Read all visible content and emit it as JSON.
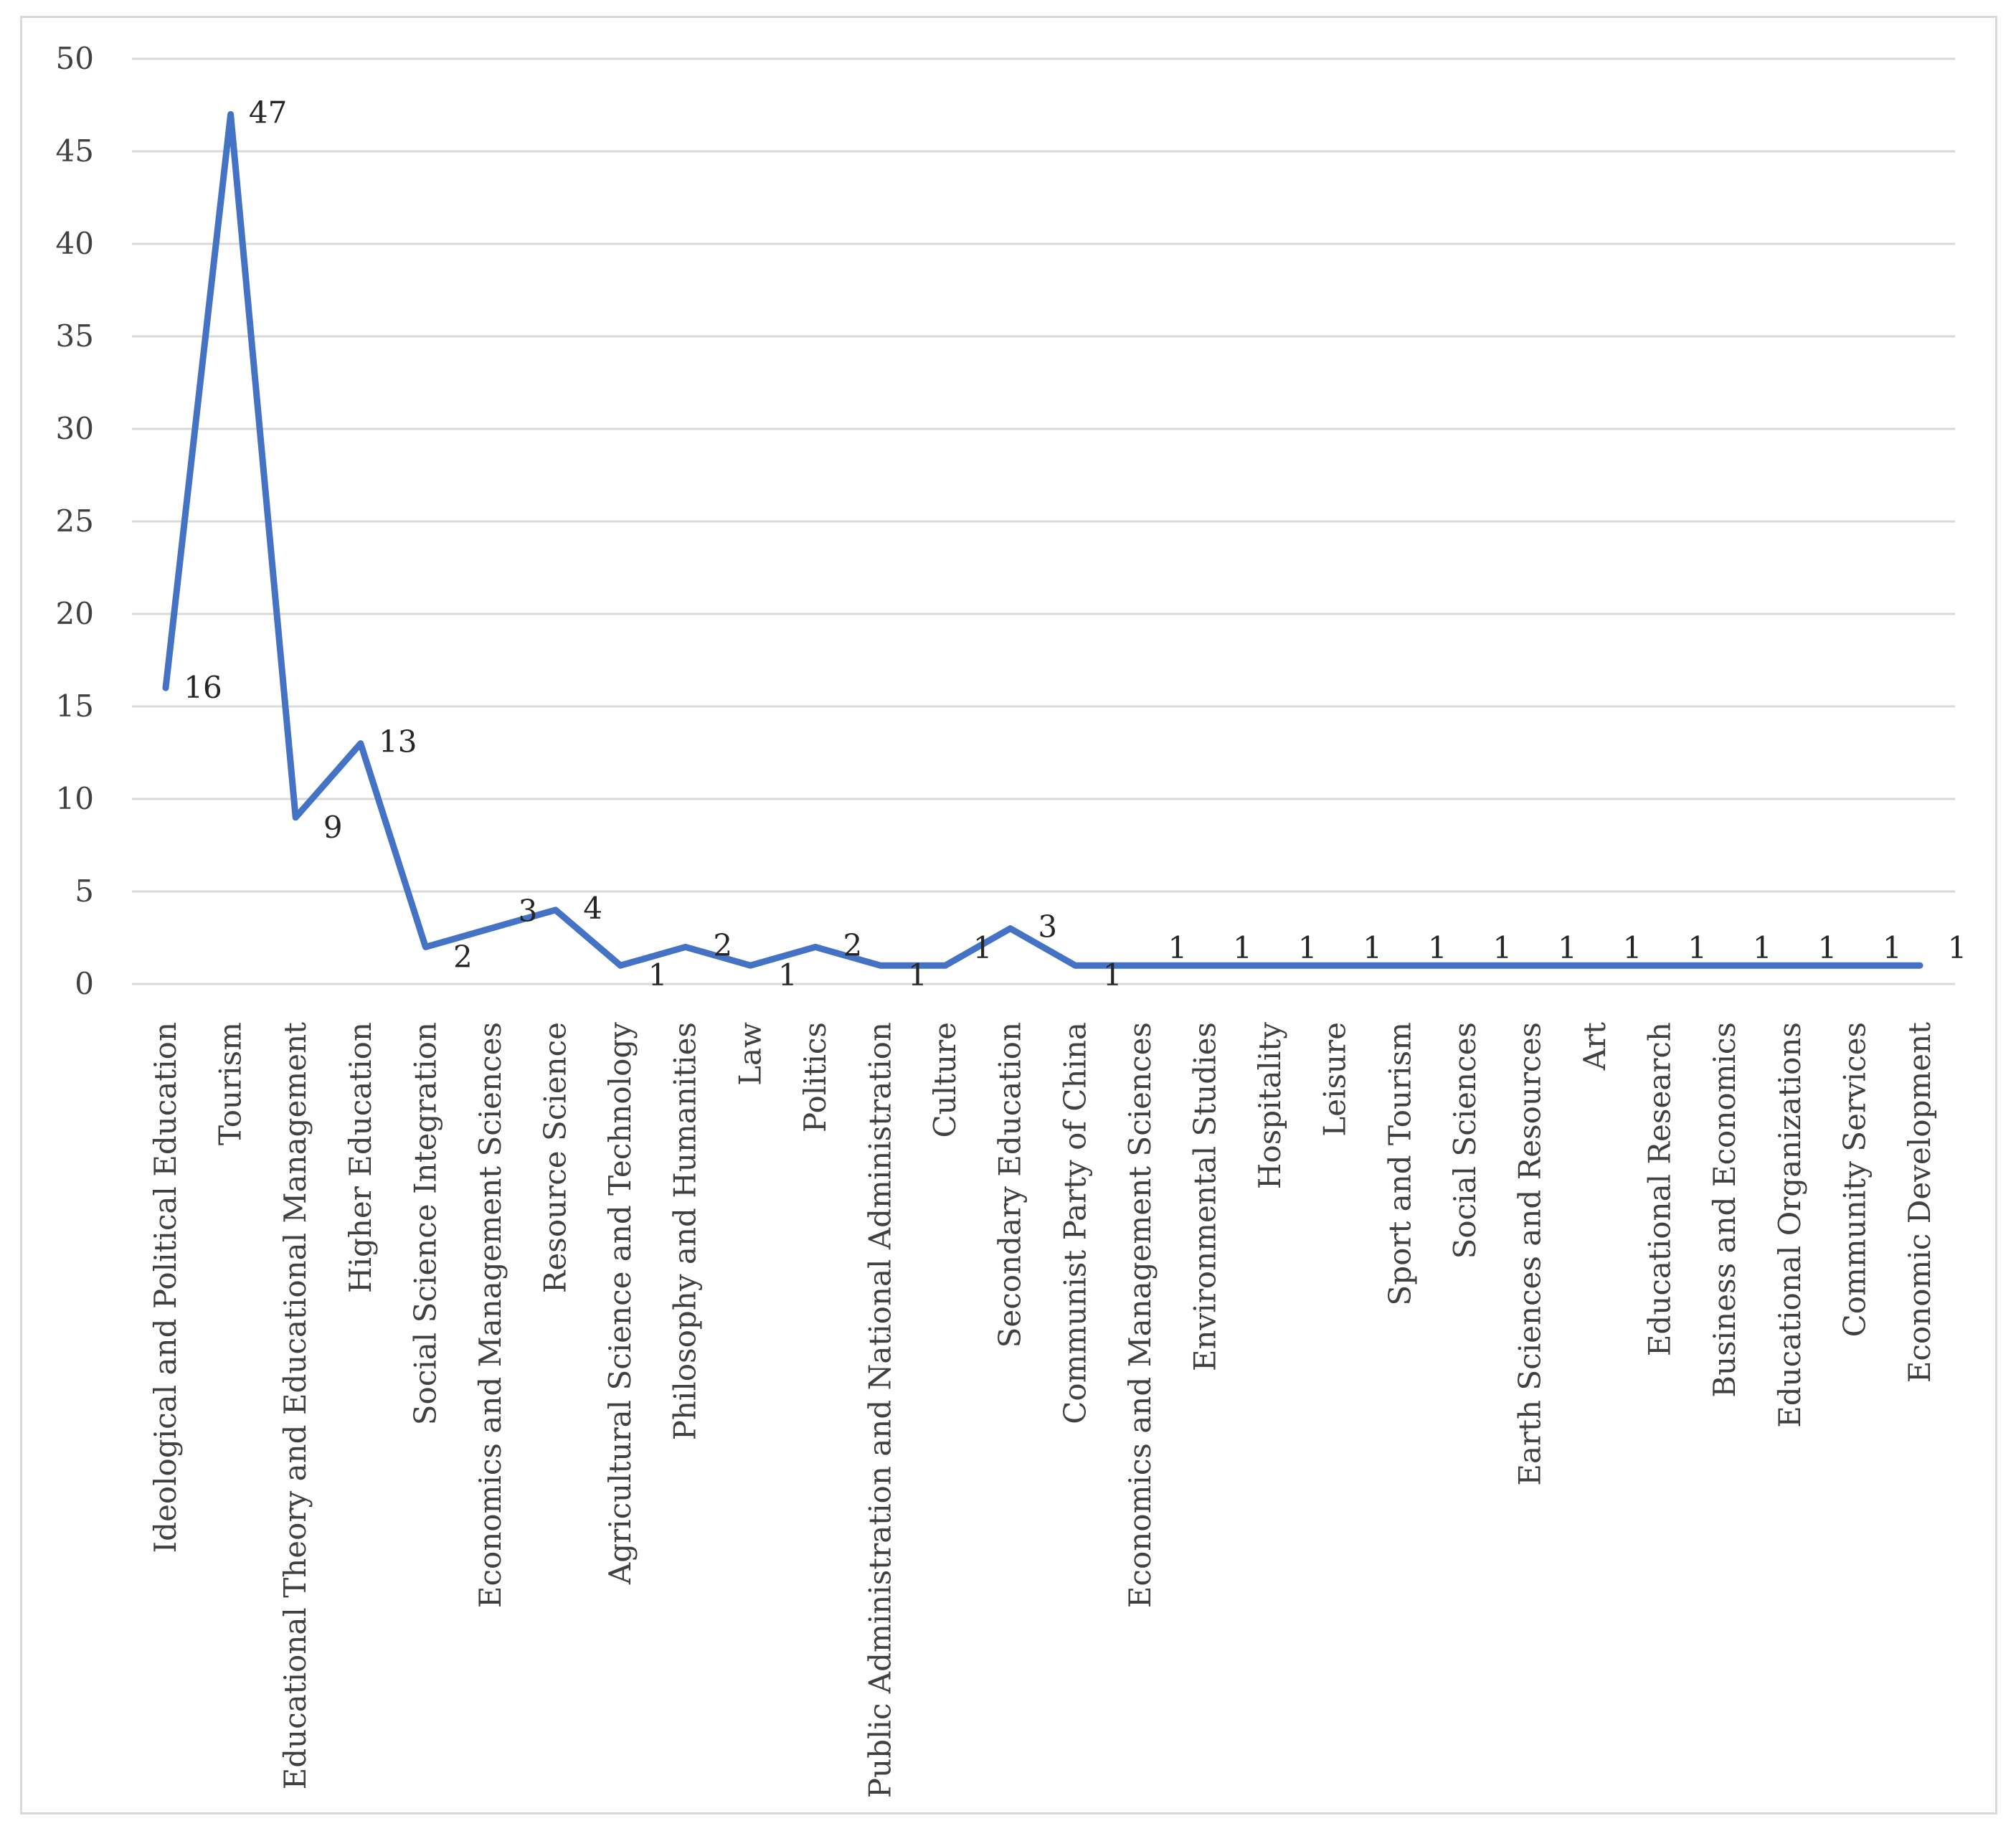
{
  "chart_data": {
    "type": "line",
    "title": "",
    "xlabel": "",
    "ylabel": "",
    "ylim": [
      0,
      50
    ],
    "yticks": [
      0,
      5,
      10,
      15,
      20,
      25,
      30,
      35,
      40,
      45,
      50
    ],
    "grid": true,
    "legend": "none",
    "series_color": "#4472c4",
    "categories": [
      "Ideological and Political Education",
      "Tourism",
      "Educational Theory and Educational Management",
      "Higher Education",
      "Social Science Integration",
      "Economics and Management Sciences",
      "Resource Science",
      "Agricultural Science and Technology",
      "Philosophy and Humanities",
      "Law",
      "Politics",
      "Public Administration and National Administration",
      "Culture",
      "Secondary Education",
      "Communist Party of China",
      "Economics and Management Sciences",
      "Environmental Studies",
      "Hospitality",
      "Leisure",
      "Sport and Tourism",
      "Social Sciences",
      "Earth Sciences and Resources",
      "Art",
      "Educational Research",
      "Business and Economics",
      "Educational Organizations",
      "Community Services",
      "Economic Development"
    ],
    "series": [
      {
        "values": [
          16,
          47,
          9,
          13,
          2,
          3,
          4,
          1,
          2,
          1,
          2,
          1,
          1,
          3,
          1,
          1,
          1,
          1,
          1,
          1,
          1,
          1,
          1,
          1,
          1,
          1,
          1,
          1
        ]
      }
    ]
  }
}
